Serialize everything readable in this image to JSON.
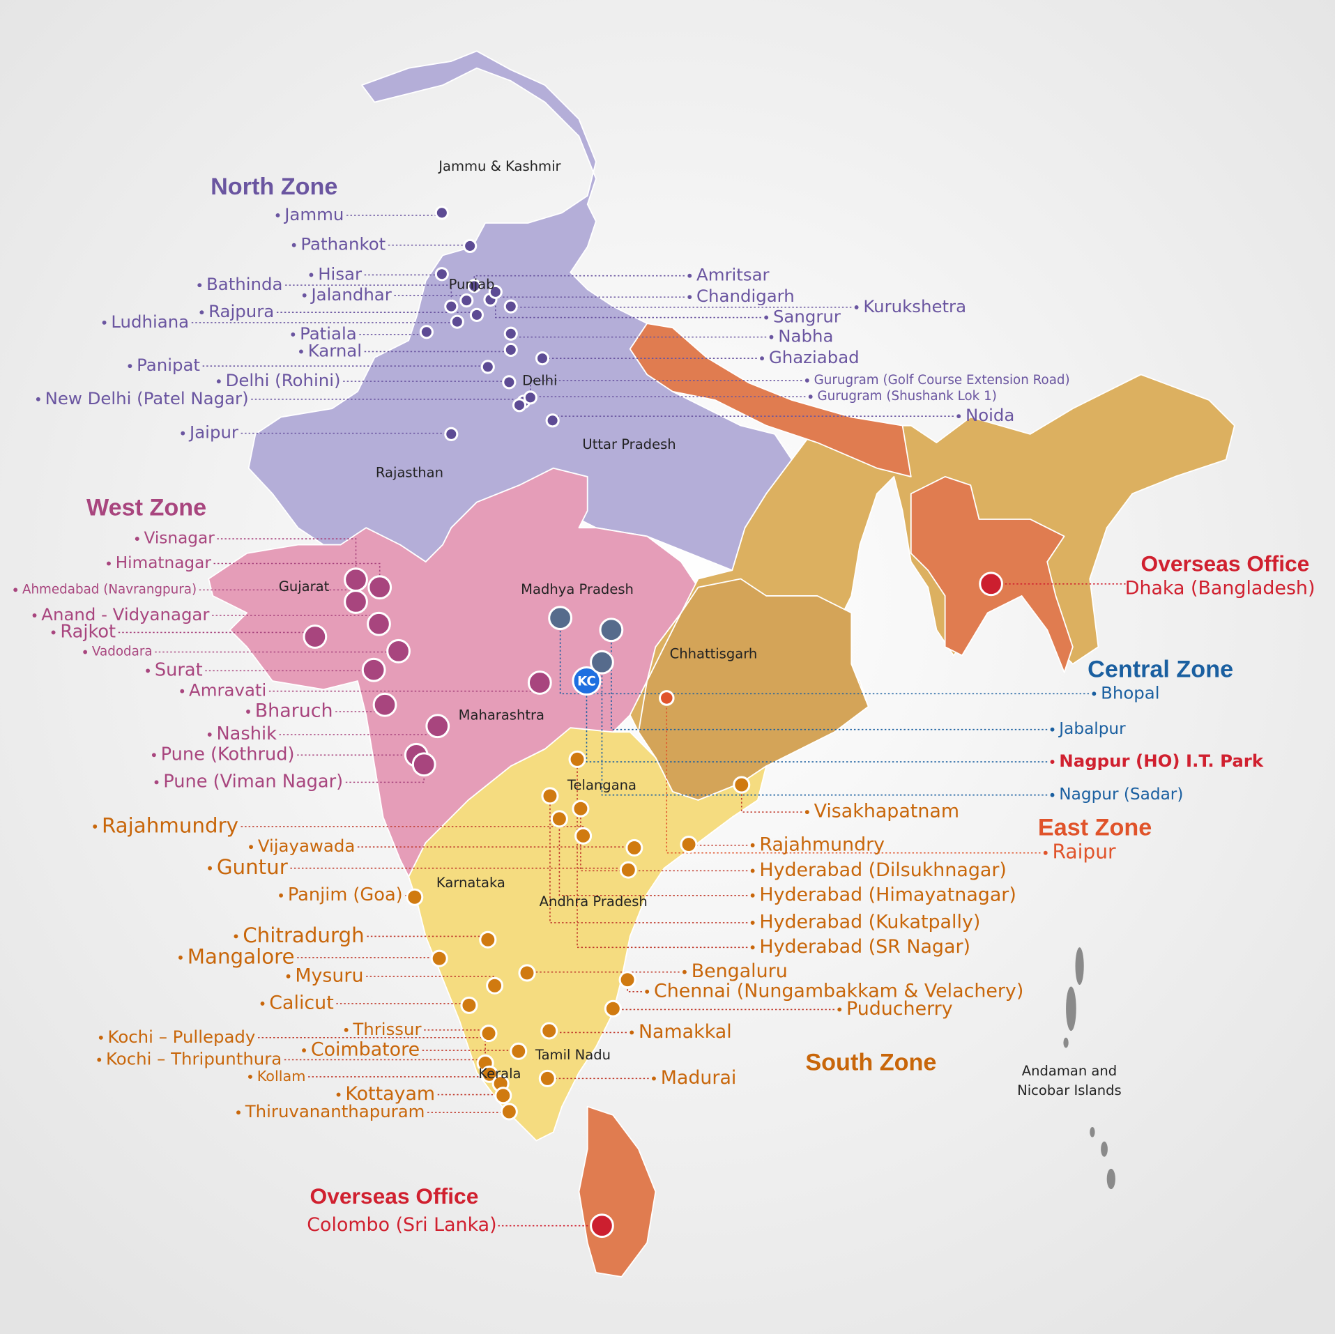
{
  "regions": [
    "Jammu & Kashmir",
    "Punjab",
    "Delhi",
    "Uttar Pradesh",
    "Rajasthan",
    "Gujarat",
    "Madhya Pradesh",
    "Chhattisgarh",
    "Maharashtra",
    "Telangana",
    "Karnataka",
    "Andhra Pradesh",
    "Tamil Nadu",
    "Kerala",
    "Andaman and",
    "Nicobar Islands"
  ],
  "zones": [
    {
      "title": "North Zone",
      "color": "#6a55a0",
      "dot_color": "#5d4b94",
      "offices": [
        "Jammu",
        "Pathankot",
        "Hisar",
        "Bathinda",
        "Jalandhar",
        "Rajpura",
        "Ludhiana",
        "Patiala",
        "Karnal",
        "Panipat",
        "Delhi (Rohini)",
        "New Delhi (Patel Nagar)",
        "Jaipur",
        "Amritsar",
        "Chandigarh",
        "Kurukshetra",
        "Sangrur",
        "Nabha",
        "Ghaziabad",
        "Gurugram (Golf Course Extension Road)",
        "Gurugram (Shushank Lok 1)",
        "Noida"
      ]
    },
    {
      "title": "West Zone",
      "color": "#a8457e",
      "dot_color": "#a8457e",
      "offices": [
        "Visnagar",
        "Himatnagar",
        "Ahmedabad (Navrangpura)",
        "Anand - Vidyanagar",
        "Rajkot",
        "Vadodara",
        "Surat",
        "Amravati",
        "Bharuch",
        "Nashik",
        "Pune (Kothrud)",
        "Pune (Viman Nagar)"
      ]
    },
    {
      "title": "Central Zone",
      "color": "#1a5fa0",
      "dot_color": "#566b8c",
      "offices": [
        "Bhopal",
        "Jabalpur",
        "Nagpur (HO) I.T. Park",
        "Nagpur (Sadar)"
      ],
      "head_office_marker": "KC"
    },
    {
      "title": "East Zone",
      "color": "#e0532a",
      "dot_color": "#e0532a",
      "offices": [
        "Raipur"
      ]
    },
    {
      "title": "South Zone",
      "color": "#c8660a",
      "dot_color": "#d07a10",
      "offices": [
        "Rajahmundry",
        "Vijayawada",
        "Guntur",
        "Panjim (Goa)",
        "Chitradurgh",
        "Mangalore",
        "Mysuru",
        "Calicut",
        "Thrissur",
        "Kochi – Pullepady",
        "Coimbatore",
        "Kochi – Thripunthura",
        "Kollam",
        "Kottayam",
        "Thiruvananthapuram",
        "Visakhapatnam",
        "Rajahmundry",
        "Hyderabad (Dilsukhnagar)",
        "Hyderabad (Himayatnagar)",
        "Hyderabad (Kukatpally)",
        "Hyderabad (SR Nagar)",
        "Bengaluru",
        "Chennai (Nungambakkam & Velachery)",
        "Puducherry",
        "Namakkal",
        "Madurai"
      ]
    }
  ],
  "overseas": [
    {
      "title": "Overseas Office",
      "office": "Dhaka (Bangladesh)"
    },
    {
      "title": "Overseas Office",
      "office": "Colombo (Sri Lanka)"
    }
  ],
  "overseas_color": "#d0202f"
}
